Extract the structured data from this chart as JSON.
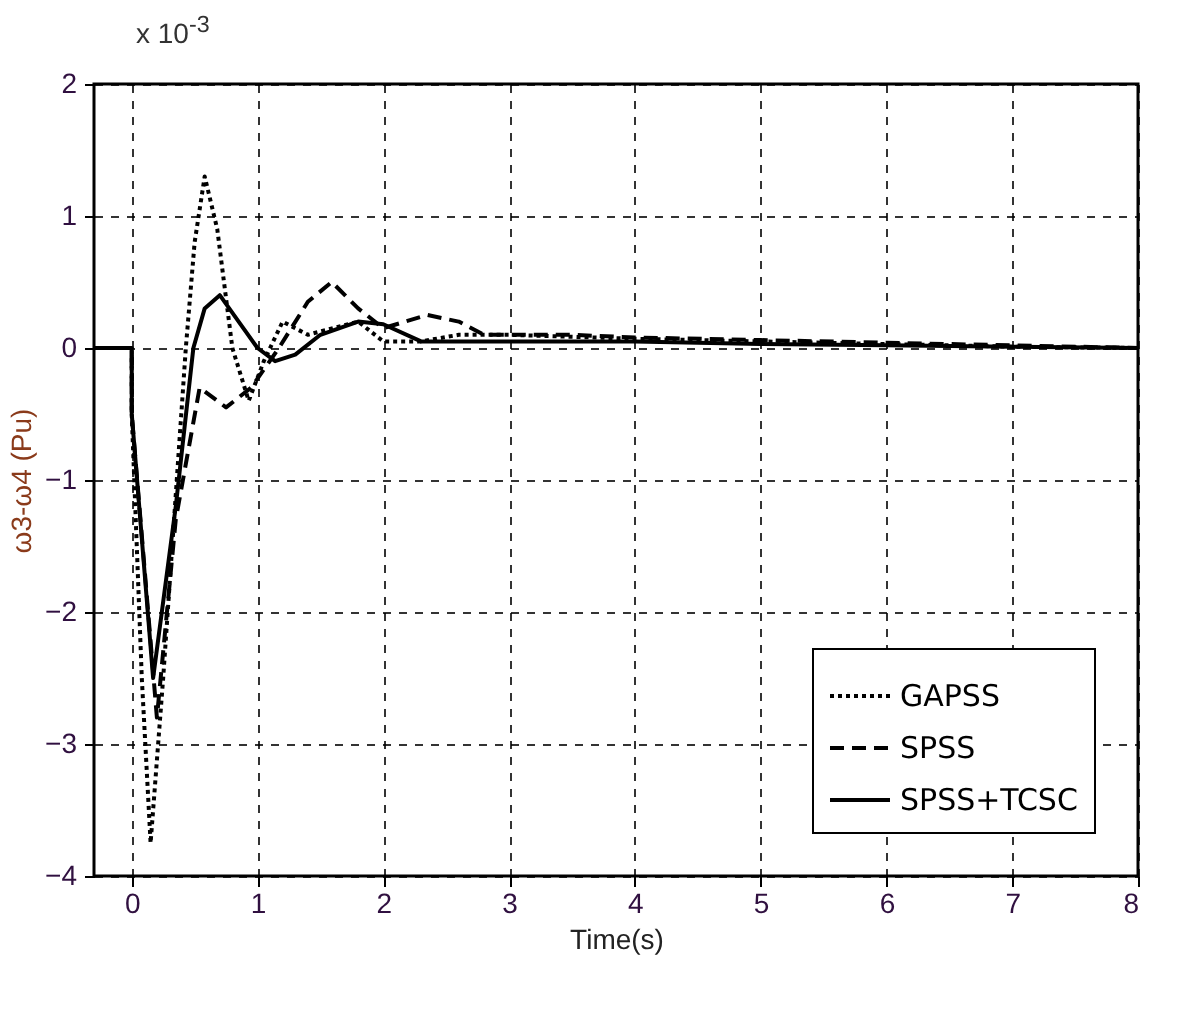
{
  "chart_data": {
    "type": "line",
    "xlabel": "Time(s)",
    "ylabel": "ω3-ω4 (Pu)",
    "annotations": [
      "x 10$^{-3}$"
    ],
    "xlim": [
      -0.3,
      8
    ],
    "ylim": [
      -4,
      2
    ],
    "xticks": [
      0,
      1,
      2,
      3,
      4,
      5,
      6,
      7,
      8
    ],
    "yticks": [
      -4,
      -3,
      -2,
      -1,
      0,
      1,
      2
    ],
    "grid": true,
    "legend": "bottom right",
    "marker": "none",
    "series": [
      {
        "name": "GAPSS",
        "color": "#000000",
        "line_style": "dotted",
        "x": [
          -0.3,
          0,
          0,
          0.08,
          0.15,
          0.25,
          0.43,
          0.5,
          0.58,
          0.68,
          0.8,
          0.93,
          1.05,
          1.2,
          1.4,
          1.6,
          1.8,
          2.0,
          2.3,
          2.6,
          3,
          4,
          5,
          6,
          7,
          8
        ],
        "values": [
          0,
          0,
          -0.5,
          -2.5,
          -3.75,
          -2.5,
          0,
          0.8,
          1.3,
          0.9,
          0,
          -0.4,
          -0.1,
          0.2,
          0.1,
          0.15,
          0.2,
          0.05,
          0.05,
          0.1,
          0.1,
          0.07,
          0.05,
          0.03,
          0.01,
          0
        ]
      },
      {
        "name": "SPSS",
        "color": "#000000",
        "line_style": "dashed",
        "x": [
          -0.3,
          0,
          0,
          0.2,
          0.35,
          0.54,
          0.75,
          0.95,
          1.17,
          1.4,
          1.59,
          1.8,
          2.0,
          2.35,
          2.6,
          2.8,
          3.5,
          4,
          5,
          6,
          7,
          8
        ],
        "values": [
          0,
          0,
          -0.5,
          -2.8,
          -1.3,
          -0.3,
          -0.45,
          -0.3,
          0,
          0.35,
          0.5,
          0.3,
          0.15,
          0.25,
          0.2,
          0.1,
          0.1,
          0.08,
          0.06,
          0.04,
          0.02,
          0
        ]
      },
      {
        "name": "SPSS+TCSC",
        "color": "#000000",
        "line_style": "solid",
        "x": [
          -0.3,
          0,
          0,
          0.17,
          0.35,
          0.49,
          0.58,
          0.7,
          0.85,
          1.0,
          1.14,
          1.3,
          1.5,
          1.8,
          2.0,
          2.3,
          3,
          4,
          5,
          6,
          7,
          8
        ],
        "values": [
          0,
          0,
          -0.5,
          -2.5,
          -1.2,
          0,
          0.3,
          0.4,
          0.2,
          0,
          -0.1,
          -0.05,
          0.1,
          0.2,
          0.18,
          0.05,
          0.05,
          0.05,
          0.03,
          0.02,
          0.01,
          0
        ]
      }
    ]
  }
}
